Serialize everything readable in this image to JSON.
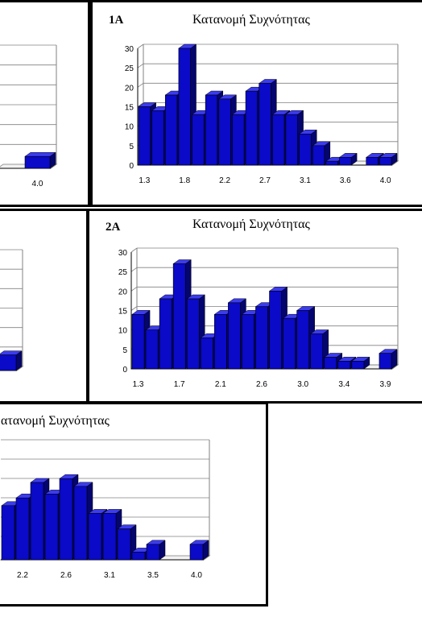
{
  "chart_data": [
    {
      "panel": "1A-left-cropped",
      "type": "bar",
      "visible_tick_labels": [
        "4.0"
      ],
      "values_visible": [
        0,
        3
      ],
      "ylim": [
        0,
        30
      ]
    },
    {
      "panel": "1A",
      "type": "bar",
      "label": "1A",
      "title": "Κατανομή Συχνότητας",
      "tick_labels": [
        "1.3",
        "1.8",
        "2.2",
        "2.7",
        "3.1",
        "3.6",
        "4.0"
      ],
      "values": [
        15,
        14,
        18,
        30,
        13,
        18,
        17,
        13,
        19,
        21,
        13,
        13,
        8,
        5,
        1,
        2,
        0,
        2,
        2
      ],
      "yticks": [
        0,
        5,
        10,
        15,
        20,
        25,
        30
      ],
      "ylim": [
        0,
        30
      ],
      "grid": true
    },
    {
      "panel": "2A-left-cropped",
      "type": "bar",
      "values_visible": [
        4
      ],
      "ylim": [
        0,
        30
      ]
    },
    {
      "panel": "2A",
      "type": "bar",
      "label": "2A",
      "title": "Κατανομή Συχνότητας",
      "tick_labels": [
        "1.3",
        "1.7",
        "2.1",
        "2.6",
        "3.0",
        "3.4",
        "3.9"
      ],
      "values": [
        14,
        10,
        18,
        27,
        18,
        8,
        14,
        17,
        14,
        16,
        20,
        13,
        15,
        9,
        3,
        2,
        2,
        0,
        4
      ],
      "yticks": [
        0,
        5,
        10,
        15,
        20,
        25,
        30
      ],
      "ylim": [
        0,
        30
      ],
      "grid": true
    },
    {
      "panel": "bottom-cropped",
      "type": "bar",
      "title": "ατανομή Συχνότητας",
      "tick_labels": [
        "2.2",
        "2.6",
        "3.1",
        "3.5",
        "4.0"
      ],
      "values_visible": [
        14,
        16,
        20,
        17,
        21,
        19,
        12,
        12,
        8,
        2,
        4,
        0,
        0,
        4
      ],
      "ylim": [
        0,
        30
      ],
      "grid": true
    }
  ],
  "colors": {
    "bar": "#0a0ac8",
    "bar_side": "#05056e",
    "bar_top": "#3c3cf0",
    "grid": "#808080",
    "border": "#000000"
  }
}
